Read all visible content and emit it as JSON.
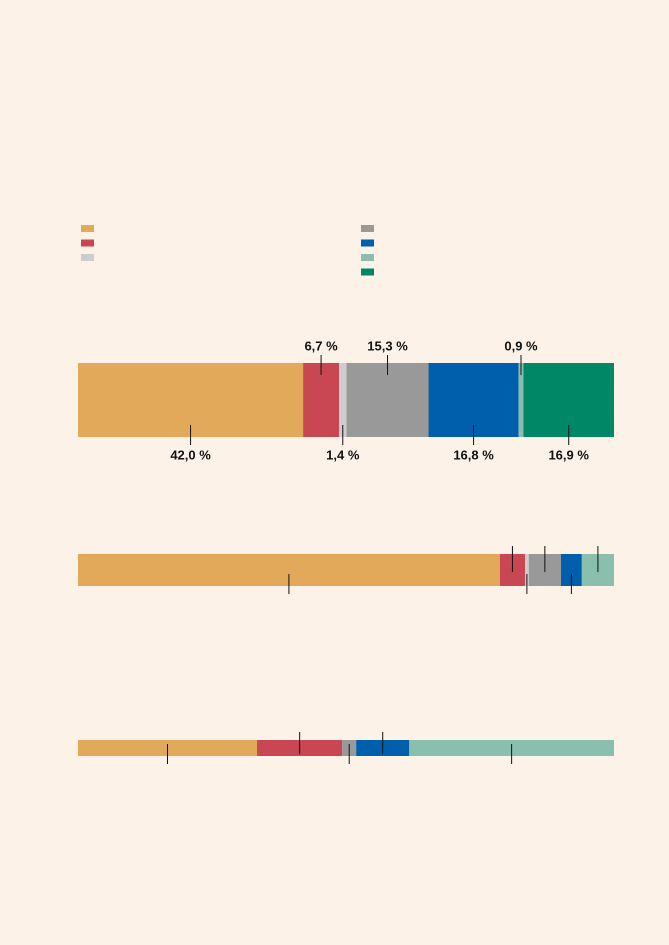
{
  "chart_data": [
    {
      "type": "stacked-bar",
      "series": [
        {
          "color": "#e2a95a",
          "values": [
            42.0
          ],
          "value_labels": [
            "42,0 %"
          ]
        },
        {
          "color": "#c94653",
          "values": [
            6.7
          ],
          "value_labels": [
            "6,7 %"
          ]
        },
        {
          "color": "#cdcdcd",
          "values": [
            1.4
          ],
          "value_labels": [
            "1,4 %"
          ]
        },
        {
          "color": "#999999",
          "values": [
            15.3
          ],
          "value_labels": [
            "15,3 %"
          ]
        },
        {
          "color": "#005fad",
          "values": [
            16.8
          ],
          "value_labels": [
            "16,8 %"
          ]
        },
        {
          "color": "#8abfae",
          "values": [
            0.9
          ],
          "value_labels": [
            "0,9 %"
          ]
        },
        {
          "color": "#008866",
          "values": [
            16.9
          ],
          "value_labels": [
            "16,9 %"
          ]
        }
      ]
    },
    {
      "type": "stacked-bar",
      "series": [
        {
          "color": "#e2a95a",
          "values": [
            78.7
          ]
        },
        {
          "color": "#c94653",
          "values": [
            4.7
          ]
        },
        {
          "color": "#cdcdcd",
          "values": [
            0.7
          ]
        },
        {
          "color": "#999999",
          "values": [
            6.0
          ]
        },
        {
          "color": "#005fad",
          "values": [
            3.9
          ]
        },
        {
          "color": "#8abfae",
          "values": [
            6.0
          ]
        }
      ]
    },
    {
      "type": "stacked-bar",
      "series": [
        {
          "color": "#e2a95a",
          "values": [
            33.4
          ]
        },
        {
          "color": "#c94653",
          "values": [
            15.9
          ]
        },
        {
          "color": "#999999",
          "values": [
            2.6
          ]
        },
        {
          "color": "#005fad",
          "values": [
            9.9
          ]
        },
        {
          "color": "#8abfae",
          "values": [
            38.2
          ]
        }
      ]
    }
  ]
}
